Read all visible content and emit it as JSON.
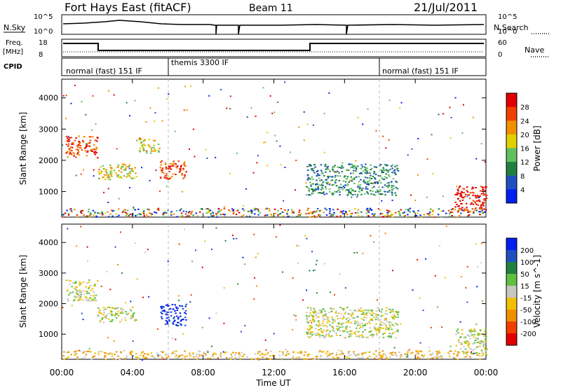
{
  "header": {
    "station": "Fort Hays East (fitACF)",
    "beam": "Beam 11",
    "date": "21/Jul/2011"
  },
  "summary_panels": {
    "nsky_label": "N.Sky",
    "nsky_ticks": [
      "10^5",
      "10^0"
    ],
    "nsearch_label": "N.Search",
    "nsearch_ticks": [
      "10^5",
      "10^0"
    ],
    "freq_label": "Freq.",
    "freq_unit": "[MHz]",
    "freq_ticks": [
      "18",
      "8"
    ],
    "nave_label": "Nave",
    "nave_ticks": [
      "60",
      "0"
    ],
    "cpid_label": "CPID",
    "cpid_modes": [
      {
        "name": "normal (fast) 151 IF",
        "start": "00:00",
        "end": "06:00"
      },
      {
        "name": "themis 3300 IF",
        "start": "06:00",
        "end": "18:00"
      },
      {
        "name": "normal (fast) 151 IF",
        "start": "18:00",
        "end": "24:00"
      }
    ]
  },
  "chart_data": [
    {
      "type": "heatmap",
      "title": "",
      "xlabel": "Time UT",
      "ylabel": "Slant Range [km]",
      "x_range_hours": [
        0,
        24
      ],
      "ylim": [
        180,
        4600
      ],
      "x_ticks": [
        "00:00",
        "04:00",
        "08:00",
        "12:00",
        "16:00",
        "20:00",
        "00:00"
      ],
      "y_ticks": [
        "1000",
        "2000",
        "3000",
        "4000"
      ],
      "colorbar": {
        "label": "Power [dB]",
        "ticks": [
          "28",
          "24",
          "20",
          "16",
          "12",
          "8",
          "4"
        ],
        "colors": [
          "#0020f0",
          "#2050c0",
          "#208040",
          "#60c060",
          "#e0d000",
          "#f09000",
          "#f04000",
          "#e00000"
        ]
      },
      "echo_regions": [
        {
          "t_start": 0.2,
          "t_end": 2.0,
          "r_min": 2100,
          "r_max": 2800,
          "level": 6
        },
        {
          "t_start": 2.0,
          "t_end": 4.2,
          "r_min": 1400,
          "r_max": 1900,
          "level": 4
        },
        {
          "t_start": 4.2,
          "t_end": 5.5,
          "r_min": 2250,
          "r_max": 2700,
          "level": 4
        },
        {
          "t_start": 5.5,
          "t_end": 7.0,
          "r_min": 1400,
          "r_max": 2000,
          "level": 6
        },
        {
          "t_start": 13.8,
          "t_end": 19.0,
          "r_min": 900,
          "r_max": 1900,
          "level": 2
        },
        {
          "t_start": 22.2,
          "t_end": 24.0,
          "r_min": 350,
          "r_max": 1200,
          "level": 7
        }
      ]
    },
    {
      "type": "heatmap",
      "title": "",
      "xlabel": "Time UT",
      "ylabel": "Slant Range [km]",
      "x_range_hours": [
        0,
        24
      ],
      "ylim": [
        180,
        4600
      ],
      "x_ticks": [
        "00:00",
        "04:00",
        "08:00",
        "12:00",
        "16:00",
        "20:00",
        "00:00"
      ],
      "y_ticks": [
        "1000",
        "2000",
        "3000",
        "4000"
      ],
      "colorbar": {
        "label": "Velocity [m s^-1]",
        "ticks": [
          "200",
          "100",
          "50",
          "15",
          "-15",
          "-50",
          "-100",
          "-200"
        ],
        "colors": [
          "#e00000",
          "#f04000",
          "#f09000",
          "#f0c000",
          "#c8c8c0",
          "#60c040",
          "#208040",
          "#2050c0",
          "#0020f0"
        ]
      },
      "echo_regions": [
        {
          "t_start": 0.2,
          "t_end": 2.0,
          "r_min": 2100,
          "r_max": 2800,
          "level": 4
        },
        {
          "t_start": 2.0,
          "t_end": 4.2,
          "r_min": 1400,
          "r_max": 1900,
          "level": 4
        },
        {
          "t_start": 5.5,
          "t_end": 7.0,
          "r_min": 1300,
          "r_max": 2000,
          "level": 8
        },
        {
          "t_start": 13.8,
          "t_end": 19.0,
          "r_min": 900,
          "r_max": 1900,
          "level": 4
        },
        {
          "t_start": 22.2,
          "t_end": 24.0,
          "r_min": 350,
          "r_max": 1200,
          "level": 4
        }
      ]
    }
  ]
}
